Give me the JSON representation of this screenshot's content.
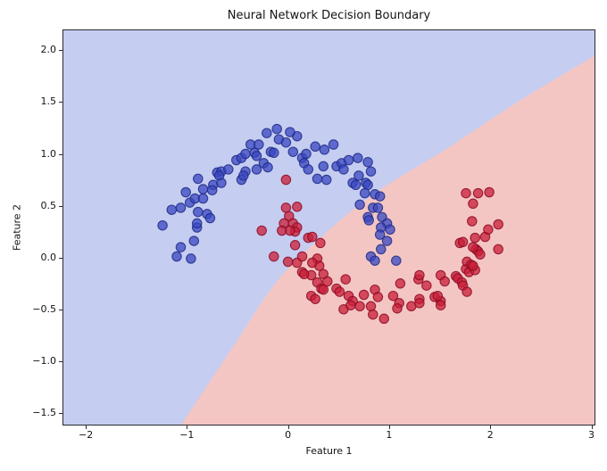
{
  "chart_data": {
    "type": "scatter",
    "title": "Neural Network Decision Boundary",
    "xlabel": "Feature 1",
    "ylabel": "Feature 2",
    "xlim": [
      -2.23,
      3.04
    ],
    "ylim": [
      -1.62,
      2.2
    ],
    "x_ticks": [
      -2,
      -1,
      0,
      1,
      2,
      3
    ],
    "x_tick_labels": [
      "−2",
      "−1",
      "0",
      "1",
      "2",
      "3"
    ],
    "y_ticks": [
      2.0,
      1.5,
      1.0,
      0.5,
      0.0,
      -0.5,
      -1.0,
      -1.5
    ],
    "y_tick_labels": [
      "2.0",
      "1.5",
      "1.0",
      "0.5",
      "0.0",
      "−0.5",
      "−1.0",
      "−1.5"
    ],
    "grid": false,
    "legend_position": "none",
    "background_color": "#ffffff",
    "spine_color": "#2b2b30",
    "regions": {
      "class0_region_color": "#c5cdf1",
      "class1_region_color": "#f4c6c3",
      "boundary_curve": [
        [
          -1.06,
          -1.62
        ],
        [
          -0.55,
          -0.87
        ],
        [
          -0.11,
          -0.23
        ],
        [
          0.33,
          0.2
        ],
        [
          0.86,
          0.62
        ],
        [
          1.57,
          1.05
        ],
        [
          2.27,
          1.5
        ],
        [
          3.04,
          1.95
        ]
      ]
    },
    "marker": {
      "radius_px": 5.2,
      "fill_alpha": 0.75,
      "edge_width": 1.1
    },
    "series": [
      {
        "name": "class-0-blue-moon",
        "color": "#3a47c0",
        "edge_color": "#1d2a85",
        "points": [
          [
            -1.24,
            0.31
          ],
          [
            -0.9,
            0.29
          ],
          [
            -0.93,
            0.16
          ],
          [
            -1.06,
            0.1
          ],
          [
            -1.1,
            0.01
          ],
          [
            -0.96,
            -0.01
          ],
          [
            -1.15,
            0.46
          ],
          [
            -1.06,
            0.48
          ],
          [
            -0.89,
            0.44
          ],
          [
            -0.8,
            0.42
          ],
          [
            -0.77,
            0.38
          ],
          [
            -0.9,
            0.33
          ],
          [
            -1.01,
            0.63
          ],
          [
            -0.97,
            0.53
          ],
          [
            -0.92,
            0.57
          ],
          [
            -0.84,
            0.57
          ],
          [
            -0.89,
            0.76
          ],
          [
            -0.74,
            0.7
          ],
          [
            -0.84,
            0.66
          ],
          [
            -0.75,
            0.65
          ],
          [
            -0.7,
            0.82
          ],
          [
            -0.66,
            0.83
          ],
          [
            -0.68,
            0.79
          ],
          [
            -0.66,
            0.72
          ],
          [
            -0.59,
            0.85
          ],
          [
            -0.51,
            0.94
          ],
          [
            -0.46,
            0.96
          ],
          [
            -0.42,
            1.0
          ],
          [
            -0.42,
            0.83
          ],
          [
            -0.46,
            0.75
          ],
          [
            -0.44,
            0.79
          ],
          [
            -0.31,
            0.85
          ],
          [
            -0.33,
            1.01
          ],
          [
            -0.31,
            0.98
          ],
          [
            -0.37,
            1.09
          ],
          [
            -0.29,
            1.09
          ],
          [
            -0.21,
            1.2
          ],
          [
            -0.11,
            1.24
          ],
          [
            -0.09,
            1.14
          ],
          [
            0.09,
            1.17
          ],
          [
            0.05,
            1.02
          ],
          [
            0.14,
            0.96
          ],
          [
            -0.17,
            1.02
          ],
          [
            -0.14,
            1.01
          ],
          [
            -0.24,
            0.91
          ],
          [
            -0.2,
            0.87
          ],
          [
            0.02,
            1.21
          ],
          [
            -0.02,
            1.11
          ],
          [
            0.18,
            1.0
          ],
          [
            0.16,
            0.91
          ],
          [
            0.2,
            0.85
          ],
          [
            0.27,
            1.07
          ],
          [
            0.36,
            1.04
          ],
          [
            0.45,
            1.09
          ],
          [
            0.35,
            0.88
          ],
          [
            0.29,
            0.76
          ],
          [
            0.38,
            0.75
          ],
          [
            0.48,
            0.88
          ],
          [
            0.53,
            0.91
          ],
          [
            0.55,
            0.85
          ],
          [
            0.6,
            0.94
          ],
          [
            0.69,
            0.96
          ],
          [
            0.79,
            0.92
          ],
          [
            0.82,
            0.83
          ],
          [
            0.7,
            0.79
          ],
          [
            0.64,
            0.72
          ],
          [
            0.67,
            0.7
          ],
          [
            0.77,
            0.72
          ],
          [
            0.79,
            0.7
          ],
          [
            0.76,
            0.62
          ],
          [
            0.86,
            0.61
          ],
          [
            0.91,
            0.59
          ],
          [
            0.71,
            0.51
          ],
          [
            0.84,
            0.48
          ],
          [
            0.89,
            0.48
          ],
          [
            0.79,
            0.39
          ],
          [
            0.8,
            0.36
          ],
          [
            0.93,
            0.39
          ],
          [
            0.98,
            0.33
          ],
          [
            0.92,
            0.29
          ],
          [
            1.01,
            0.27
          ],
          [
            0.91,
            0.22
          ],
          [
            0.98,
            0.16
          ],
          [
            0.92,
            0.08
          ],
          [
            0.82,
            0.01
          ],
          [
            0.86,
            -0.03
          ],
          [
            1.07,
            -0.03
          ]
        ]
      },
      {
        "name": "class-1-red-moon",
        "color": "#c81e38",
        "edge_color": "#8c0a23",
        "points": [
          [
            -0.02,
            0.75
          ],
          [
            -0.02,
            0.48
          ],
          [
            0.09,
            0.49
          ],
          [
            0.01,
            0.4
          ],
          [
            -0.04,
            0.33
          ],
          [
            0.05,
            0.33
          ],
          [
            0.09,
            0.29
          ],
          [
            0.07,
            0.25
          ],
          [
            -0.26,
            0.26
          ],
          [
            -0.06,
            0.26
          ],
          [
            0.02,
            0.26
          ],
          [
            0.2,
            0.19
          ],
          [
            0.24,
            0.2
          ],
          [
            0.07,
            0.12
          ],
          [
            0.32,
            0.14
          ],
          [
            -0.14,
            0.01
          ],
          [
            0.0,
            -0.04
          ],
          [
            0.09,
            -0.05
          ],
          [
            0.14,
            0.01
          ],
          [
            0.29,
            -0.01
          ],
          [
            0.31,
            -0.08
          ],
          [
            0.14,
            -0.14
          ],
          [
            0.23,
            -0.17
          ],
          [
            0.35,
            -0.16
          ],
          [
            0.16,
            -0.16
          ],
          [
            0.24,
            -0.05
          ],
          [
            0.29,
            -0.24
          ],
          [
            0.39,
            -0.23
          ],
          [
            0.33,
            -0.3
          ],
          [
            0.35,
            -0.31
          ],
          [
            0.48,
            -0.3
          ],
          [
            0.51,
            -0.33
          ],
          [
            0.23,
            -0.37
          ],
          [
            0.27,
            -0.4
          ],
          [
            0.57,
            -0.21
          ],
          [
            0.6,
            -0.37
          ],
          [
            0.64,
            -0.42
          ],
          [
            0.75,
            -0.36
          ],
          [
            0.86,
            -0.31
          ],
          [
            0.89,
            -0.38
          ],
          [
            0.82,
            -0.47
          ],
          [
            0.71,
            -0.47
          ],
          [
            0.55,
            -0.5
          ],
          [
            0.62,
            -0.46
          ],
          [
            0.84,
            -0.55
          ],
          [
            0.95,
            -0.59
          ],
          [
            1.04,
            -0.37
          ],
          [
            1.11,
            -0.25
          ],
          [
            1.1,
            -0.44
          ],
          [
            1.08,
            -0.49
          ],
          [
            1.22,
            -0.47
          ],
          [
            1.29,
            -0.21
          ],
          [
            1.37,
            -0.27
          ],
          [
            1.45,
            -0.38
          ],
          [
            1.51,
            -0.42
          ],
          [
            1.3,
            -0.17
          ],
          [
            1.51,
            -0.17
          ],
          [
            1.55,
            -0.23
          ],
          [
            1.3,
            -0.4
          ],
          [
            1.48,
            -0.37
          ],
          [
            1.51,
            -0.46
          ],
          [
            1.3,
            -0.44
          ],
          [
            1.66,
            -0.18
          ],
          [
            1.68,
            -0.2
          ],
          [
            1.72,
            -0.24
          ],
          [
            1.73,
            -0.27
          ],
          [
            1.77,
            -0.33
          ],
          [
            1.76,
            -0.11
          ],
          [
            1.79,
            -0.14
          ],
          [
            1.85,
            -0.12
          ],
          [
            1.77,
            -0.04
          ],
          [
            1.81,
            -0.07
          ],
          [
            1.83,
            -0.08
          ],
          [
            1.86,
            0.08
          ],
          [
            1.88,
            0.06
          ],
          [
            1.9,
            0.03
          ],
          [
            1.83,
            0.1
          ],
          [
            1.7,
            0.14
          ],
          [
            1.73,
            0.15
          ],
          [
            1.95,
            0.2
          ],
          [
            1.85,
            0.19
          ],
          [
            2.08,
            0.08
          ],
          [
            2.08,
            0.32
          ],
          [
            1.98,
            0.27
          ],
          [
            1.82,
            0.35
          ],
          [
            1.83,
            0.52
          ],
          [
            1.76,
            0.62
          ],
          [
            1.88,
            0.62
          ],
          [
            1.99,
            0.63
          ]
        ]
      }
    ]
  }
}
